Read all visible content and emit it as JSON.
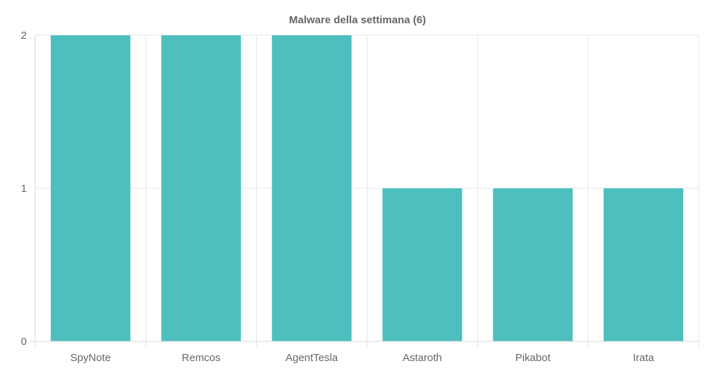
{
  "chart_data": {
    "type": "bar",
    "title": "Malware della settimana (6)",
    "xlabel": "",
    "ylabel": "",
    "categories": [
      "SpyNote",
      "Remcos",
      "AgentTesla",
      "Astaroth",
      "Pikabot",
      "Irata"
    ],
    "values": [
      2,
      2,
      2,
      1,
      1,
      1
    ],
    "ylim": [
      0,
      2
    ],
    "yticks": [
      0,
      1,
      2
    ],
    "grid": true,
    "legend": "none",
    "bar_color": "#4dbfbf"
  }
}
